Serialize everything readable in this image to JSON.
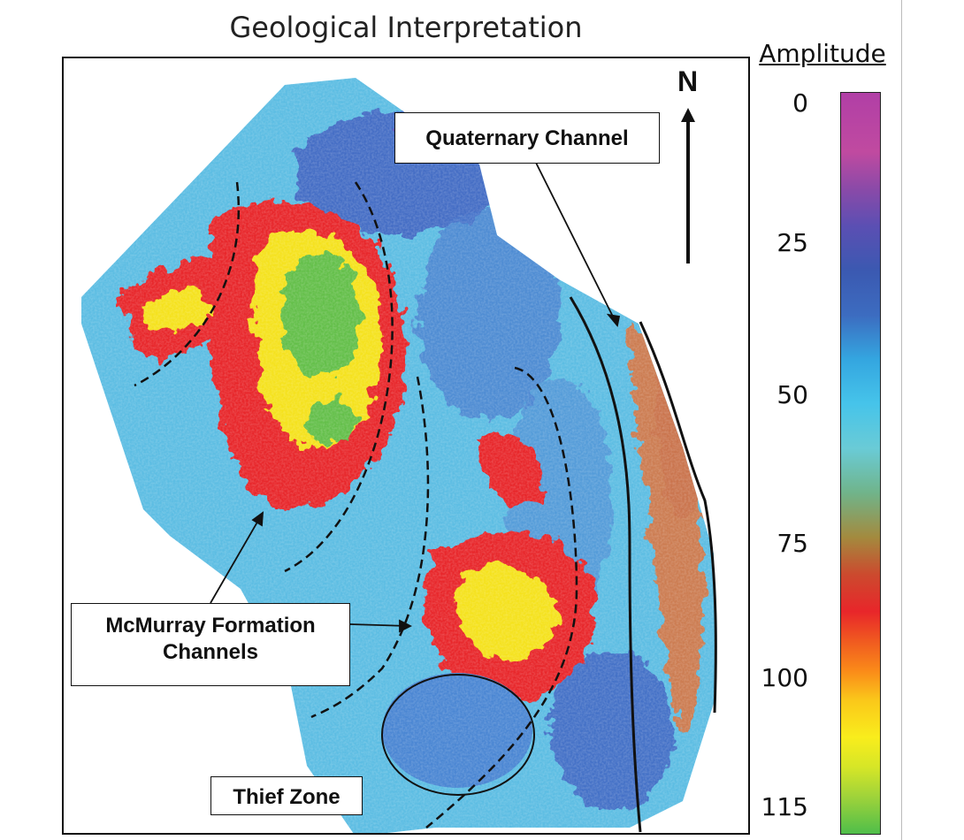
{
  "title": "Geological Interpretation",
  "north_label": "N",
  "annotations": {
    "quaternary": "Quaternary Channel",
    "mcmurray_line1": "McMurray Formation",
    "mcmurray_line2": "Channels",
    "thief": "Thief Zone"
  },
  "colorbar": {
    "title": "Amplitude",
    "ticks": [
      "0",
      "25",
      "50",
      "75",
      "100",
      "115"
    ],
    "colors": [
      "#b13fa6",
      "#3b59b1",
      "#46c4ea",
      "#e8262a",
      "#f9ed1c",
      "#4fbe4a"
    ]
  }
}
